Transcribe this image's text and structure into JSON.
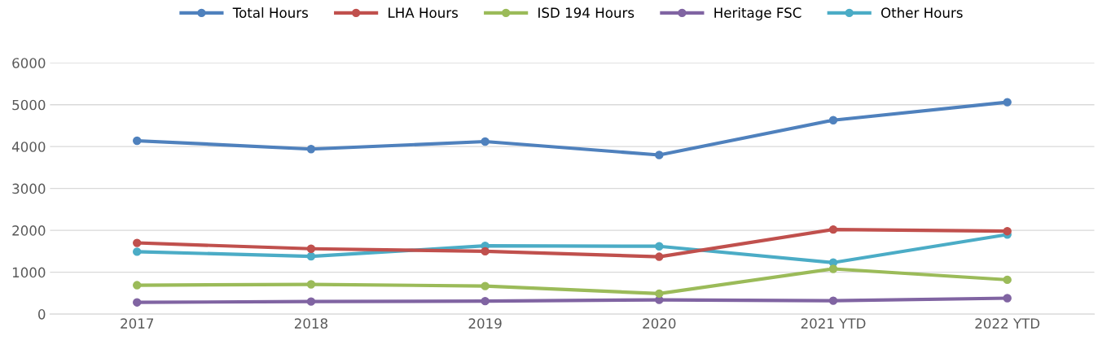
{
  "chart_data": {
    "type": "line",
    "categories": [
      "2017",
      "2018",
      "2019",
      "2020",
      "2021 YTD",
      "2022 YTD"
    ],
    "series": [
      {
        "name": "Total Hours",
        "color": "#4f81bd",
        "values": [
          4140,
          3940,
          4120,
          3800,
          4630,
          5060
        ]
      },
      {
        "name": "LHA Hours",
        "color": "#c0504d",
        "values": [
          1700,
          1560,
          1500,
          1370,
          2020,
          1980
        ]
      },
      {
        "name": "ISD 194 Hours",
        "color": "#9bbb59",
        "values": [
          690,
          710,
          670,
          490,
          1080,
          820
        ]
      },
      {
        "name": "Heritage FSC",
        "color": "#8064a2",
        "values": [
          280,
          300,
          310,
          340,
          320,
          380
        ]
      },
      {
        "name": "Other Hours",
        "color": "#4bacc6",
        "values": [
          1490,
          1380,
          1630,
          1620,
          1230,
          1900
        ]
      }
    ],
    "ylim": [
      0,
      6000
    ],
    "yticks": [
      0,
      1000,
      2000,
      3000,
      4000,
      5000,
      6000
    ],
    "grid": "y",
    "legend": "top",
    "marker": "circle",
    "line_style": "solid"
  }
}
